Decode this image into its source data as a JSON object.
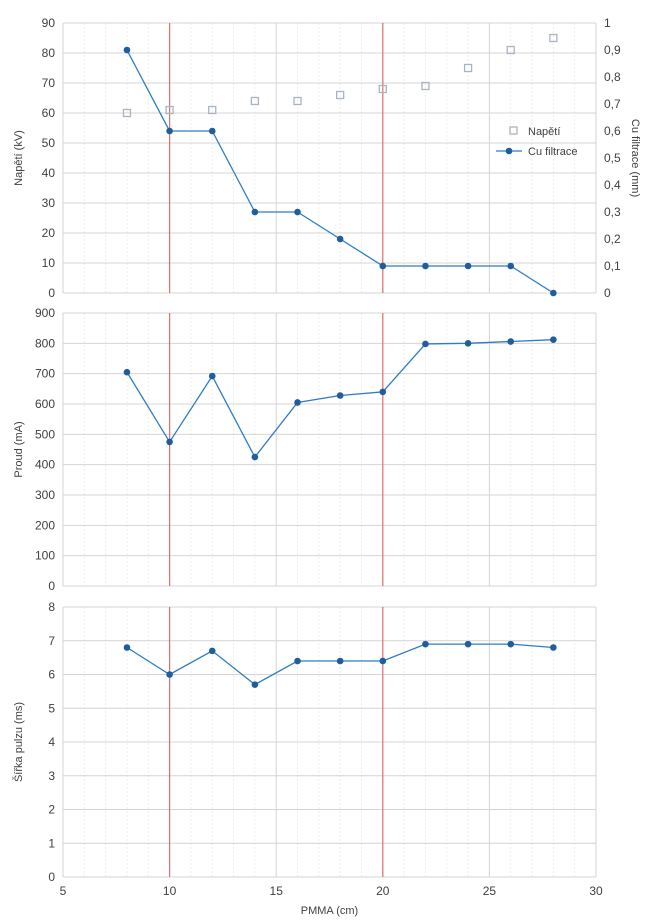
{
  "chart_data": [
    {
      "type": "line",
      "panel": "top",
      "xlabel": "",
      "ylabel": "Napětí (kV)",
      "y2label": "Cu filtrace (mm)",
      "xlim": [
        5,
        30
      ],
      "ylim": [
        0,
        90
      ],
      "y2lim": [
        0,
        1
      ],
      "yticks": [
        "0",
        "10",
        "20",
        "30",
        "40",
        "50",
        "60",
        "70",
        "80",
        "90"
      ],
      "y2ticks": [
        "0",
        "0,1",
        "0,2",
        "0,3",
        "0,4",
        "0,5",
        "0,6",
        "0,7",
        "0,8",
        "0,9",
        "1"
      ],
      "grid": true,
      "legend_position": "right",
      "series": [
        {
          "name": "Napětí",
          "axis": "left",
          "style": "open-square",
          "color": "#a8b4c4",
          "x": [
            8,
            10,
            12,
            14,
            16,
            18,
            20,
            22,
            24,
            26,
            28
          ],
          "y": [
            60,
            61,
            61,
            64,
            64,
            66,
            68,
            69,
            75,
            81,
            85
          ]
        },
        {
          "name": "Cu filtrace",
          "axis": "right",
          "style": "line-marker",
          "color": "#2e7cc4",
          "x": [
            8,
            10,
            12,
            14,
            16,
            18,
            20,
            22,
            24,
            26,
            28
          ],
          "y": [
            0.9,
            0.6,
            0.6,
            0.3,
            0.3,
            0.2,
            0.1,
            0.1,
            0.1,
            0.1,
            0
          ]
        }
      ]
    },
    {
      "type": "line",
      "panel": "middle",
      "xlabel": "",
      "ylabel": "Proud (mA)",
      "xlim": [
        5,
        30
      ],
      "ylim": [
        0,
        900
      ],
      "yticks": [
        "0",
        "100",
        "200",
        "300",
        "400",
        "500",
        "600",
        "700",
        "800",
        "900"
      ],
      "grid": true,
      "series": [
        {
          "color": "#2e7cc4",
          "x": [
            8,
            10,
            12,
            14,
            16,
            18,
            20,
            22,
            24,
            26,
            28
          ],
          "y": [
            705,
            475,
            692,
            425,
            605,
            628,
            640,
            798,
            800,
            806,
            812
          ]
        }
      ]
    },
    {
      "type": "line",
      "panel": "bottom",
      "xlabel": "PMMA (cm)",
      "ylabel": "Šířka pulzu (ms)",
      "xlim": [
        5,
        30
      ],
      "ylim": [
        0,
        8
      ],
      "xticks": [
        "5",
        "10",
        "15",
        "20",
        "25",
        "30"
      ],
      "yticks": [
        "0",
        "1",
        "2",
        "3",
        "4",
        "5",
        "6",
        "7",
        "8"
      ],
      "grid": true,
      "series": [
        {
          "color": "#2e7cc4",
          "x": [
            8,
            10,
            12,
            14,
            16,
            18,
            20,
            22,
            24,
            26,
            28
          ],
          "y": [
            6.8,
            6.0,
            6.7,
            5.7,
            6.4,
            6.4,
            6.4,
            6.9,
            6.9,
            6.9,
            6.8
          ]
        }
      ]
    }
  ],
  "reference_lines": {
    "x": [
      10,
      20
    ],
    "color": "#e07070"
  },
  "colors": {
    "grid_major": "#d4d4d4",
    "grid_minor": "#ececec",
    "axis_text": "#404040"
  }
}
